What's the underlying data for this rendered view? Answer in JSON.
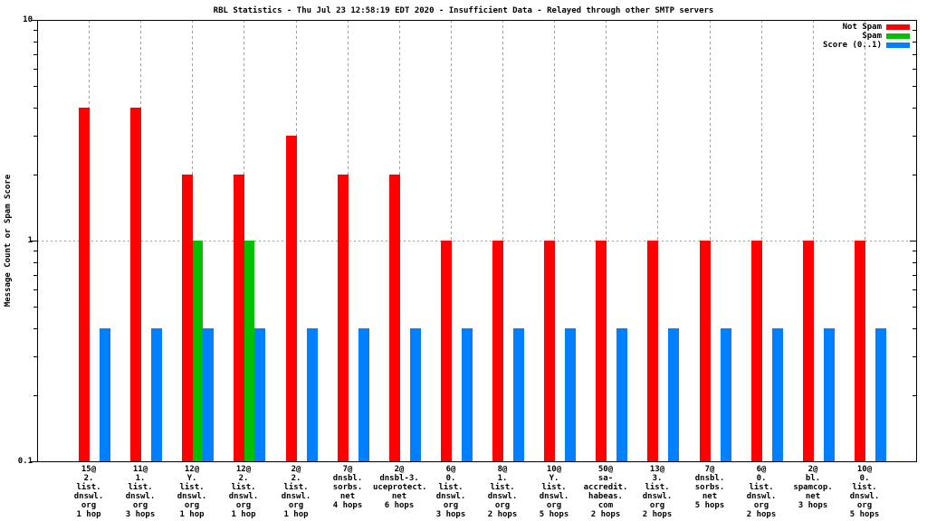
{
  "title": "RBL Statistics - Thu Jul 23 12:58:19 EDT 2020 - Insufficient Data - Relayed through other SMTP servers",
  "ylabel": "Message Count or Spam Score",
  "colors": {
    "not_spam": "#ff0000",
    "spam": "#00c000",
    "score": "#0080ff",
    "grid": "#a0a0a0",
    "axis": "#000000",
    "background": "#ffffff"
  },
  "legend": {
    "position": "top-right",
    "entries": [
      "Not Spam",
      "Spam",
      "Score (0..1)"
    ]
  },
  "chart_data": {
    "type": "bar",
    "title": "RBL Statistics - Thu Jul 23 12:58:19 EDT 2020 - Insufficient Data - Relayed through other SMTP servers",
    "xlabel": "",
    "ylabel": "Message Count or Spam Score",
    "yscale": "log",
    "ylim": [
      0.1,
      10
    ],
    "yticks": [
      {
        "value": 0.1,
        "label": "0.1"
      },
      {
        "value": 1,
        "label": "1"
      },
      {
        "value": 10,
        "label": "10"
      }
    ],
    "yticks_minor": [
      0.2,
      0.3,
      0.4,
      0.5,
      0.6,
      0.7,
      0.8,
      0.9,
      2,
      3,
      4,
      5,
      6,
      7,
      8,
      9
    ],
    "grid": {
      "vertical_at_category_centers": true,
      "horizontal_at": [
        1
      ]
    },
    "legend_position": "top-right",
    "categories": [
      [
        "15@",
        "2.",
        "list.",
        "dnswl.",
        "org",
        "1 hop"
      ],
      [
        "11@",
        "1.",
        "list.",
        "dnswl.",
        "org",
        "3 hops"
      ],
      [
        "12@",
        "Y.",
        "list.",
        "dnswl.",
        "org",
        "1 hop"
      ],
      [
        "12@",
        "2.",
        "list.",
        "dnswl.",
        "org",
        "1 hop"
      ],
      [
        "2@",
        "2.",
        "list.",
        "dnswl.",
        "org",
        "1 hop"
      ],
      [
        "7@",
        "dnsbl.",
        "sorbs.",
        "net",
        "4 hops"
      ],
      [
        "2@",
        "dnsbl-3.",
        "uceprotect.",
        "net",
        "6 hops"
      ],
      [
        "6@",
        "0.",
        "list.",
        "dnswl.",
        "org",
        "3 hops"
      ],
      [
        "8@",
        "1.",
        "list.",
        "dnswl.",
        "org",
        "2 hops"
      ],
      [
        "10@",
        "Y.",
        "list.",
        "dnswl.",
        "org",
        "5 hops"
      ],
      [
        "50@",
        "sa-accredit.",
        "habeas.",
        "com",
        "2 hops"
      ],
      [
        "13@",
        "3.",
        "list.",
        "dnswl.",
        "org",
        "2 hops"
      ],
      [
        "7@",
        "dnsbl.",
        "sorbs.",
        "net",
        "5 hops"
      ],
      [
        "6@",
        "0.",
        "list.",
        "dnswl.",
        "org",
        "2 hops"
      ],
      [
        "2@",
        "bl.",
        "spamcop.",
        "net",
        "3 hops"
      ],
      [
        "10@",
        "0.",
        "list.",
        "dnswl.",
        "org",
        "5 hops"
      ]
    ],
    "series": [
      {
        "name": "Not Spam",
        "color": "#ff0000",
        "values": [
          4,
          4,
          2,
          2,
          3,
          2,
          2,
          1,
          1,
          1,
          1,
          1,
          1,
          1,
          1,
          1
        ]
      },
      {
        "name": "Spam",
        "color": "#00c000",
        "values": [
          0,
          0,
          1,
          1,
          0,
          0,
          0,
          0,
          0,
          0,
          0,
          0,
          0,
          0,
          0,
          0
        ]
      },
      {
        "name": "Score (0..1)",
        "color": "#0080ff",
        "values": [
          0.4,
          0.4,
          0.4,
          0.4,
          0.4,
          0.4,
          0.4,
          0.4,
          0.4,
          0.4,
          0.4,
          0.4,
          0.4,
          0.4,
          0.4,
          0.4
        ]
      }
    ]
  }
}
